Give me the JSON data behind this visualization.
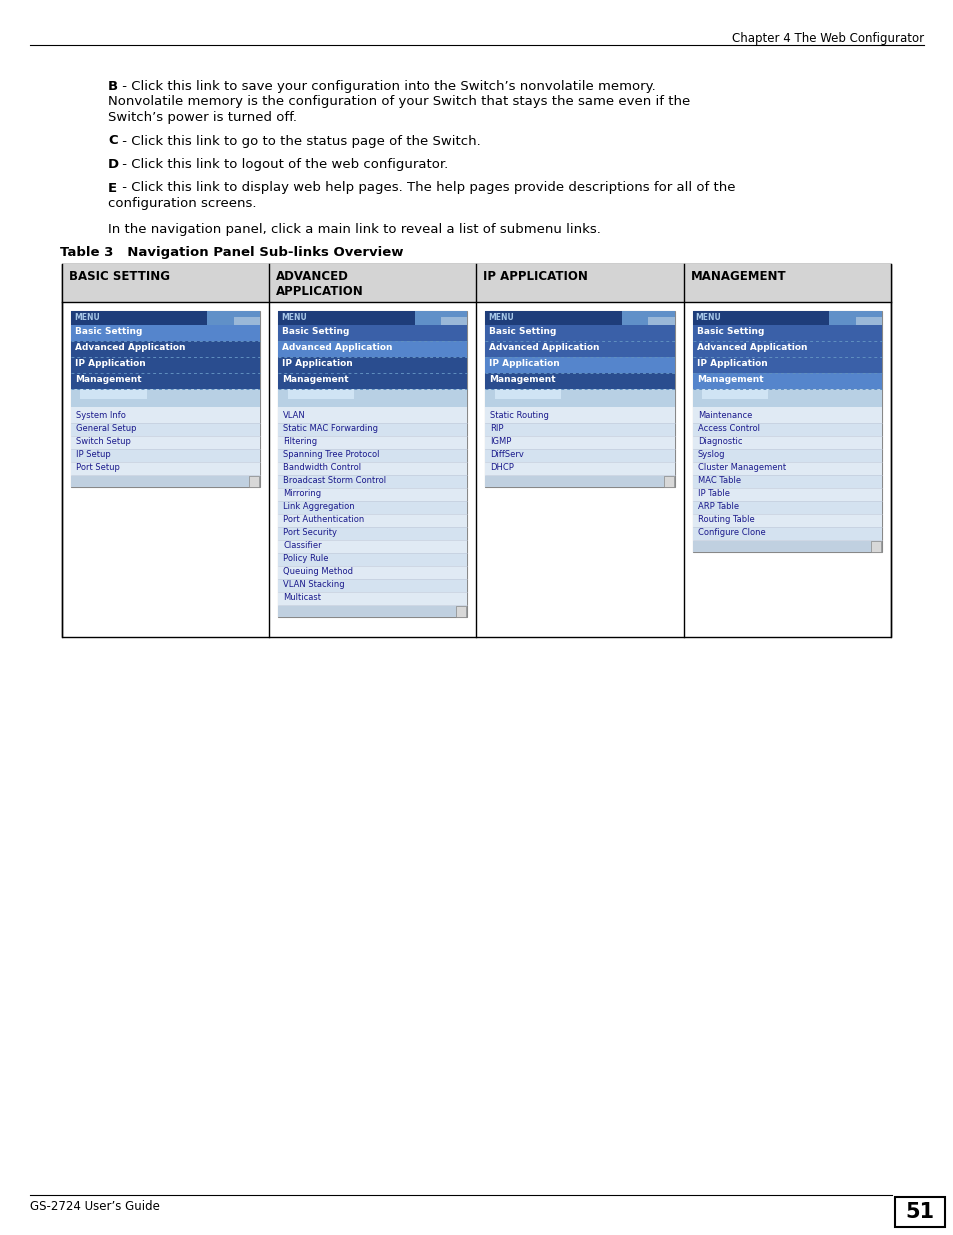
{
  "page_header": "Chapter 4 The Web Configurator",
  "page_footer": "GS-2724 User’s Guide",
  "page_number": "51",
  "body_text": [
    {
      "bold_part": "B",
      "rest": " - Click this link to save your configuration into the Switch’s nonvolatile memory.\nNonvolatile memory is the configuration of your Switch that stays the same even if the\nSwitch’s power is turned off."
    },
    {
      "bold_part": "C",
      "rest": " - Click this link to go to the status page of the Switch."
    },
    {
      "bold_part": "D",
      "rest": " - Click this link to logout of the web configurator."
    },
    {
      "bold_part": "E",
      "rest": " - Click this link to display web help pages. The help pages provide descriptions for all of the\nconfiguration screens."
    }
  ],
  "nav_text": "In the navigation panel, click a main link to reveal a list of submenu links.",
  "table_label": "Table 3   Navigation Panel Sub-links Overview",
  "table_headers": [
    "BASIC SETTING",
    "ADVANCED\nAPPLICATION",
    "IP APPLICATION",
    "MANAGEMENT"
  ],
  "menu_items_common": [
    "Basic Setting",
    "Advanced Application",
    "IP Application",
    "Management"
  ],
  "col1_subitems": [
    "System Info",
    "General Setup",
    "Switch Setup",
    "IP Setup",
    "Port Setup"
  ],
  "col2_subitems": [
    "VLAN",
    "Static MAC Forwarding",
    "Filtering",
    "Spanning Tree Protocol",
    "Bandwidth Control",
    "Broadcast Storm Control",
    "Mirroring",
    "Link Aggregation",
    "Port Authentication",
    "Port Security",
    "Classifier",
    "Policy Rule",
    "Queuing Method",
    "VLAN Stacking",
    "Multicast"
  ],
  "col3_subitems": [
    "Static Routing",
    "RIP",
    "IGMP",
    "DiffServ",
    "DHCP"
  ],
  "col4_subitems": [
    "Maintenance",
    "Access Control",
    "Diagnostic",
    "Syslog",
    "Cluster Management",
    "MAC Table",
    "IP Table",
    "ARP Table",
    "Routing Table",
    "Configure Clone"
  ],
  "active_indices": [
    0,
    1,
    2,
    3
  ],
  "menu_dark_bg": "#1e3d7a",
  "menu_medium_bg": "#4472b8",
  "menu_light_bg": "#5585cc",
  "sub_area_bg": "#d8e4f0",
  "sub_area_top_bg": "#b8cce0",
  "scrollbar_bg": "#c8d8e8",
  "table_header_bg": "#d4d4d4",
  "table_cell_bg": "#ffffff",
  "panel_border": "#888888",
  "menu_text_white": "#ffffff",
  "sub_text_color": "#1a1a8c",
  "separator_color": "#b0b8c8"
}
